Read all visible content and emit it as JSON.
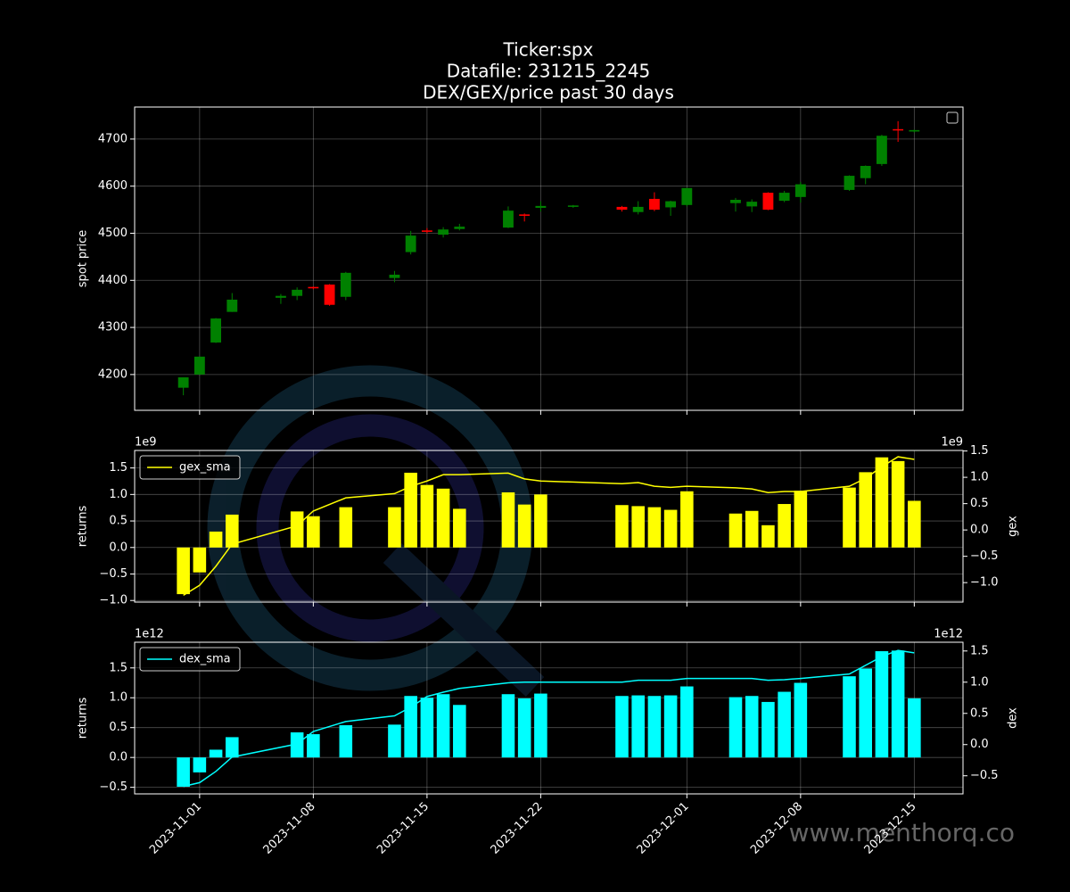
{
  "watermark": "www.menthorq.co",
  "chart_data": [
    {
      "type": "candlestick",
      "title": [
        "Ticker:spx",
        "Datafile: 231215_2245",
        "DEX/GEX/price past 30 days"
      ],
      "ylabel": "spot price",
      "grid": true,
      "up_color": "#008000",
      "down_color": "#ff0000",
      "x": [
        "2023-10-31",
        "2023-11-01",
        "2023-11-02",
        "2023-11-03",
        "2023-11-06",
        "2023-11-07",
        "2023-11-08",
        "2023-11-09",
        "2023-11-10",
        "2023-11-13",
        "2023-11-14",
        "2023-11-15",
        "2023-11-16",
        "2023-11-17",
        "2023-11-20",
        "2023-11-21",
        "2023-11-22",
        "2023-11-24",
        "2023-11-27",
        "2023-11-28",
        "2023-11-29",
        "2023-11-30",
        "2023-12-01",
        "2023-12-04",
        "2023-12-05",
        "2023-12-06",
        "2023-12-07",
        "2023-12-08",
        "2023-12-11",
        "2023-12-12",
        "2023-12-13",
        "2023-12-14",
        "2023-12-15"
      ],
      "open": [
        4172,
        4200,
        4268,
        4333,
        4363,
        4367,
        4386,
        4391,
        4365,
        4405,
        4460,
        4506,
        4497,
        4509,
        4512,
        4540,
        4554,
        4556,
        4556,
        4545,
        4573,
        4555,
        4560,
        4564,
        4557,
        4586,
        4569,
        4577,
        4592,
        4617,
        4647,
        4721,
        4716
      ],
      "high": [
        4194,
        4238,
        4320,
        4373,
        4371,
        4385,
        4387,
        4392,
        4418,
        4420,
        4505,
        4511,
        4513,
        4520,
        4557,
        4542,
        4568,
        4560,
        4558,
        4568,
        4587,
        4569,
        4596,
        4575,
        4572,
        4587,
        4590,
        4609,
        4623,
        4644,
        4709,
        4738,
        4720
      ],
      "low": [
        4156,
        4200,
        4267,
        4333,
        4350,
        4358,
        4381,
        4346,
        4358,
        4396,
        4455,
        4500,
        4491,
        4506,
        4511,
        4525,
        4546,
        4554,
        4546,
        4540,
        4547,
        4537,
        4557,
        4546,
        4545,
        4549,
        4566,
        4565,
        4590,
        4604,
        4643,
        4694,
        4714
      ],
      "close": [
        4194,
        4238,
        4319,
        4359,
        4367,
        4380,
        4383,
        4348,
        4416,
        4412,
        4495,
        4503,
        4508,
        4514,
        4548,
        4537,
        4558,
        4559,
        4550,
        4556,
        4550,
        4568,
        4596,
        4571,
        4567,
        4550,
        4586,
        4604,
        4622,
        4643,
        4707,
        4719,
        4719
      ],
      "ylim": [
        4124,
        4768
      ],
      "yticks": [
        4200,
        4300,
        4400,
        4500,
        4600,
        4700
      ]
    },
    {
      "type": "bar_line",
      "ylabel": "returns",
      "y2label": "gex",
      "yoffset": "1e9",
      "y2offset": "1e9",
      "grid": true,
      "legend": "upper left",
      "x": [
        "2023-10-31",
        "2023-11-01",
        "2023-11-02",
        "2023-11-03",
        "2023-11-07",
        "2023-11-08",
        "2023-11-10",
        "2023-11-13",
        "2023-11-14",
        "2023-11-15",
        "2023-11-16",
        "2023-11-17",
        "2023-11-20",
        "2023-11-21",
        "2023-11-22",
        "2023-11-27",
        "2023-11-28",
        "2023-11-29",
        "2023-11-30",
        "2023-12-01",
        "2023-12-04",
        "2023-12-05",
        "2023-12-06",
        "2023-12-07",
        "2023-12-08",
        "2023-12-11",
        "2023-12-12",
        "2023-12-13",
        "2023-12-14",
        "2023-12-15"
      ],
      "bars": {
        "color": "#ffff00",
        "values": [
          -0.88,
          -0.47,
          0.3,
          0.62,
          0.68,
          0.59,
          0.76,
          0.76,
          1.41,
          1.18,
          1.11,
          0.73,
          1.04,
          0.81,
          1.0,
          0.8,
          0.78,
          0.76,
          0.71,
          1.06,
          0.64,
          0.69,
          0.42,
          0.82,
          1.07,
          1.13,
          1.42,
          1.7,
          1.63,
          0.88
        ]
      },
      "line": {
        "name": "gex_sma",
        "color": "#ffff00",
        "axis": "y2",
        "values": [
          -1.24,
          -1.05,
          -0.69,
          -0.27,
          0.08,
          0.36,
          0.61,
          0.69,
          0.83,
          0.93,
          1.05,
          1.05,
          1.08,
          0.97,
          0.93,
          0.88,
          0.9,
          0.83,
          0.81,
          0.83,
          0.8,
          0.78,
          0.71,
          0.73,
          0.73,
          0.83,
          0.98,
          1.2,
          1.39,
          1.34
        ]
      },
      "ylim": [
        -1.03,
        1.83
      ],
      "yticks": [
        {
          "value": -1,
          "label": "−1.0"
        },
        {
          "value": -0.5,
          "label": "−0.5"
        },
        {
          "value": 0,
          "label": "0.0"
        },
        0.5,
        {
          "value": 1,
          "label": "1.0"
        },
        1.5
      ],
      "y2lim": [
        -1.37,
        1.51
      ],
      "y2ticks": [
        {
          "value": -1,
          "label": "−1.0"
        },
        {
          "value": -0.5,
          "label": "−0.5"
        },
        {
          "value": 0,
          "label": "0.0"
        },
        0.5,
        {
          "value": 1,
          "label": "1.0"
        },
        1.5
      ]
    },
    {
      "type": "bar_line",
      "ylabel": "returns",
      "y2label": "dex",
      "yoffset": "1e12",
      "y2offset": "1e12",
      "grid": true,
      "legend": "upper left",
      "x": [
        "2023-10-31",
        "2023-11-01",
        "2023-11-02",
        "2023-11-03",
        "2023-11-07",
        "2023-11-08",
        "2023-11-10",
        "2023-11-13",
        "2023-11-14",
        "2023-11-15",
        "2023-11-16",
        "2023-11-17",
        "2023-11-20",
        "2023-11-21",
        "2023-11-22",
        "2023-11-27",
        "2023-11-28",
        "2023-11-29",
        "2023-11-30",
        "2023-12-01",
        "2023-12-04",
        "2023-12-05",
        "2023-12-06",
        "2023-12-07",
        "2023-12-08",
        "2023-12-11",
        "2023-12-12",
        "2023-12-13",
        "2023-12-14",
        "2023-12-15"
      ],
      "bars": {
        "color": "#00ffff",
        "values": [
          -0.49,
          -0.25,
          0.13,
          0.34,
          0.42,
          0.39,
          0.54,
          0.55,
          1.03,
          1.0,
          1.06,
          0.88,
          1.06,
          0.99,
          1.07,
          1.03,
          1.04,
          1.03,
          1.04,
          1.19,
          1.01,
          1.03,
          0.93,
          1.1,
          1.25,
          1.36,
          1.49,
          1.78,
          1.79,
          0.99
        ]
      },
      "line": {
        "name": "dex_sma",
        "color": "#00ffff",
        "axis": "y2",
        "values": [
          -0.67,
          -0.61,
          -0.43,
          -0.2,
          0.01,
          0.21,
          0.37,
          0.46,
          0.6,
          0.77,
          0.84,
          0.9,
          0.99,
          1.0,
          1.0,
          1.0,
          1.03,
          1.03,
          1.03,
          1.06,
          1.06,
          1.06,
          1.03,
          1.04,
          1.06,
          1.13,
          1.27,
          1.41,
          1.51,
          1.47
        ]
      },
      "ylim": [
        -0.61,
        1.93
      ],
      "yticks": [
        {
          "value": -0.5,
          "label": "−0.5"
        },
        {
          "value": 0,
          "label": "0.0"
        },
        0.5,
        {
          "value": 1,
          "label": "1.0"
        },
        1.5
      ],
      "y2lim": [
        -0.79,
        1.64
      ],
      "y2ticks": [
        {
          "value": -0.5,
          "label": "−0.5"
        },
        {
          "value": 0,
          "label": "0.0"
        },
        0.5,
        {
          "value": 1,
          "label": "1.0"
        },
        1.5
      ],
      "xlim": [
        "2023-10-28",
        "2023-12-18"
      ],
      "xticks": [
        "2023-11-01",
        "2023-11-08",
        "2023-11-15",
        "2023-11-22",
        "2023-12-01",
        "2023-12-08",
        "2023-12-15"
      ]
    }
  ]
}
